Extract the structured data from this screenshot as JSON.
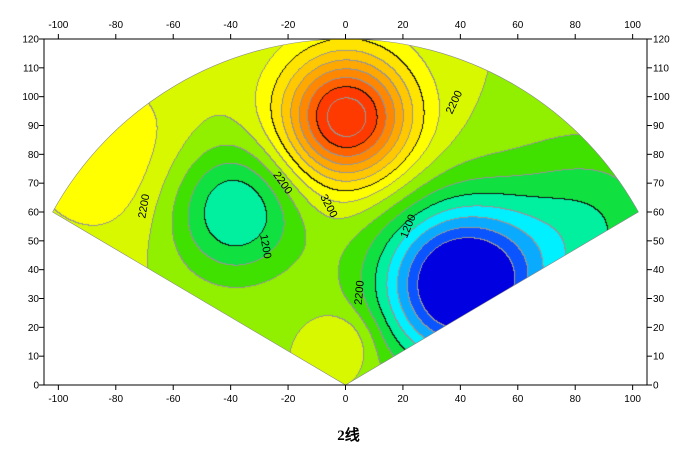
{
  "caption": "2线",
  "chart_data": {
    "type": "heatmap",
    "subtype": "filled-contour-fan",
    "title": "",
    "xlabel": "",
    "ylabel": "",
    "xlim": [
      -105,
      105
    ],
    "ylim": [
      0,
      120
    ],
    "x_ticks": [
      -100,
      -80,
      -60,
      -40,
      -20,
      0,
      20,
      40,
      60,
      80,
      100
    ],
    "y_ticks": [
      0,
      10,
      20,
      30,
      40,
      50,
      60,
      70,
      80,
      90,
      100,
      110,
      120
    ],
    "fan": {
      "apex": [
        0,
        0
      ],
      "left_edge_end": [
        -102,
        60
      ],
      "right_edge_end": [
        102,
        60
      ],
      "outer_top_y": 120
    },
    "color_scale": [
      "#0000e0",
      "#0a55ff",
      "#0aaaff",
      "#00f0ff",
      "#00f0a0",
      "#10e040",
      "#40e000",
      "#90f000",
      "#d8f800",
      "#ffff00",
      "#ffe400",
      "#ffc800",
      "#ffa800",
      "#ff8800",
      "#ff6000",
      "#ff3a00"
    ],
    "extrema": [
      {
        "type": "max",
        "x": 0,
        "y": 93
      },
      {
        "type": "min",
        "x": -39,
        "y": 61
      },
      {
        "type": "min",
        "x": 40,
        "y": 35
      }
    ],
    "contour_labels": [
      {
        "text": "2200",
        "x": -70,
        "y": 62,
        "angle": -80
      },
      {
        "text": "2200",
        "x": -22,
        "y": 70,
        "angle": 55
      },
      {
        "text": "2200",
        "x": 38,
        "y": 98,
        "angle": -65
      },
      {
        "text": "2200",
        "x": 5,
        "y": 32,
        "angle": -85
      },
      {
        "text": "1200",
        "x": -28,
        "y": 48,
        "angle": 80
      },
      {
        "text": "1200",
        "x": 22,
        "y": 55,
        "angle": -68
      },
      {
        "text": "3200",
        "x": -6,
        "y": 62,
        "angle": 62
      }
    ]
  }
}
